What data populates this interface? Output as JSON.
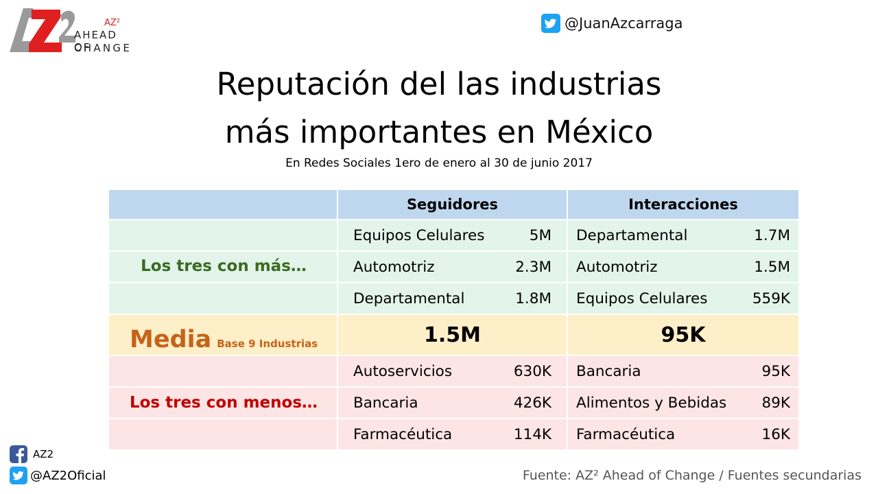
{
  "logo": {
    "text": "AZ2",
    "sup": "AZ²",
    "line1": "AHEAD OF",
    "line2": "CHANGE"
  },
  "twitter_top": {
    "handle": "@JuanAzcarraga",
    "icon": "twitter-bird-icon"
  },
  "title_line1": "Reputación del las industrias",
  "title_line2": "más importantes en México",
  "subtitle": "En Redes Sociales 1ero de enero al 30 de junio 2017",
  "colors": {
    "header": "#bfd7ee",
    "top_rows": "#e3f4ea",
    "media_row": "#fdefc8",
    "bottom_rows": "#fde5e5",
    "top_label": "#3a6b21",
    "media_label": "#c5631a",
    "bottom_label": "#c00000"
  },
  "chart_data": {
    "type": "table",
    "columns": [
      "",
      "Seguidores",
      "Interacciones"
    ],
    "top_label": "Los tres con más…",
    "top": {
      "seguidores": [
        {
          "name": "Equipos Celulares",
          "value": "5M"
        },
        {
          "name": "Automotriz",
          "value": "2.3M"
        },
        {
          "name": "Departamental",
          "value": "1.8M"
        }
      ],
      "interacciones": [
        {
          "name": "Departamental",
          "value": "1.7M"
        },
        {
          "name": "Automotriz",
          "value": "1.5M"
        },
        {
          "name": "Equipos Celulares",
          "value": "559K"
        }
      ]
    },
    "media": {
      "label": "Media",
      "base": "Base 9 Industrias",
      "seguidores": "1.5M",
      "interacciones": "95K"
    },
    "bottom_label": "Los tres con menos…",
    "bottom": {
      "seguidores": [
        {
          "name": "Autoservicios",
          "value": "630K"
        },
        {
          "name": "Bancaria",
          "value": "426K"
        },
        {
          "name": "Farmacéutica",
          "value": "114K"
        }
      ],
      "interacciones": [
        {
          "name": "Bancaria",
          "value": "95K"
        },
        {
          "name": "Alimentos y Bebidas",
          "value": "89K"
        },
        {
          "name": "Farmacéutica",
          "value": "16K"
        }
      ]
    }
  },
  "footer": {
    "facebook": {
      "name": "AZ2",
      "icon": "facebook-icon"
    },
    "twitter": {
      "handle": "@AZ2Oficial",
      "icon": "twitter-bird-icon"
    },
    "source": "Fuente: AZ² Ahead of Change / Fuentes secundarias"
  }
}
